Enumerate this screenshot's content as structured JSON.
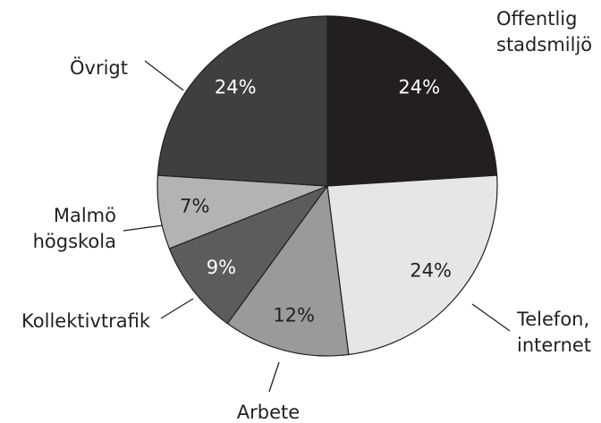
{
  "chart_data": {
    "type": "pie",
    "categories": [
      "Offentlig stadsmiljö",
      "Telefon, internet",
      "Arbete",
      "Kollektivtrafik",
      "Malmö högskola",
      "Övrigt"
    ],
    "values": [
      24,
      24,
      12,
      9,
      7,
      24
    ],
    "value_labels": [
      "24%",
      "24%",
      "12%",
      "9%",
      "7%",
      "24%"
    ],
    "colors": [
      "#231f20",
      "#e6e6e6",
      "#9a9a9a",
      "#5c5c5c",
      "#b3b3b3",
      "#3f3f40"
    ]
  }
}
